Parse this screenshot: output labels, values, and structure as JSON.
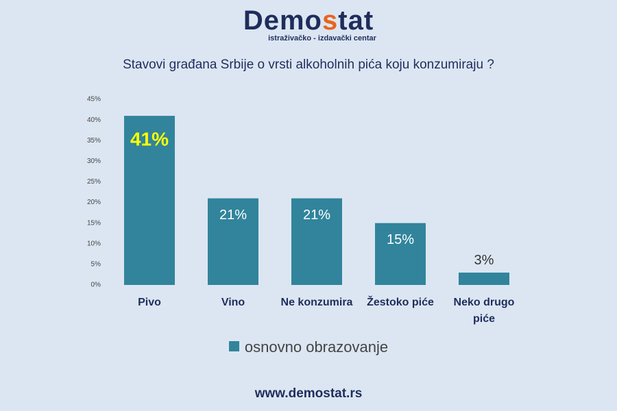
{
  "header": {
    "logo_parts": [
      "Demo",
      "s",
      "tat"
    ],
    "tagline": "istraživačko - izdavački  centar"
  },
  "chart_data": {
    "type": "bar",
    "title": "Stavovi građana Srbije o vrsti alkoholnih pića koju konzumiraju ?",
    "categories": [
      "Pivo",
      "Vino",
      "Ne konzumira",
      "Žestoko piće",
      "Neko drugo piće"
    ],
    "series": [
      {
        "name": "osnovno obrazovanje",
        "color": "#31849b",
        "values": [
          41,
          21,
          21,
          15,
          3
        ],
        "value_labels": [
          "41%",
          "21%",
          "21%",
          "15%",
          "3%"
        ]
      }
    ],
    "ylim": [
      0,
      45
    ],
    "yticks": [
      {
        "value": 0,
        "label": "0%"
      },
      {
        "value": 5,
        "label": "5%"
      },
      {
        "value": 10,
        "label": "10%"
      },
      {
        "value": 15,
        "label": "15%"
      },
      {
        "value": 20,
        "label": "20%"
      },
      {
        "value": 25,
        "label": "25%"
      },
      {
        "value": 30,
        "label": "30%"
      },
      {
        "value": 35,
        "label": "35%"
      },
      {
        "value": 40,
        "label": "40%"
      },
      {
        "value": 45,
        "label": "45%"
      }
    ],
    "grid": false
  },
  "footer": "www.demostat.rs"
}
